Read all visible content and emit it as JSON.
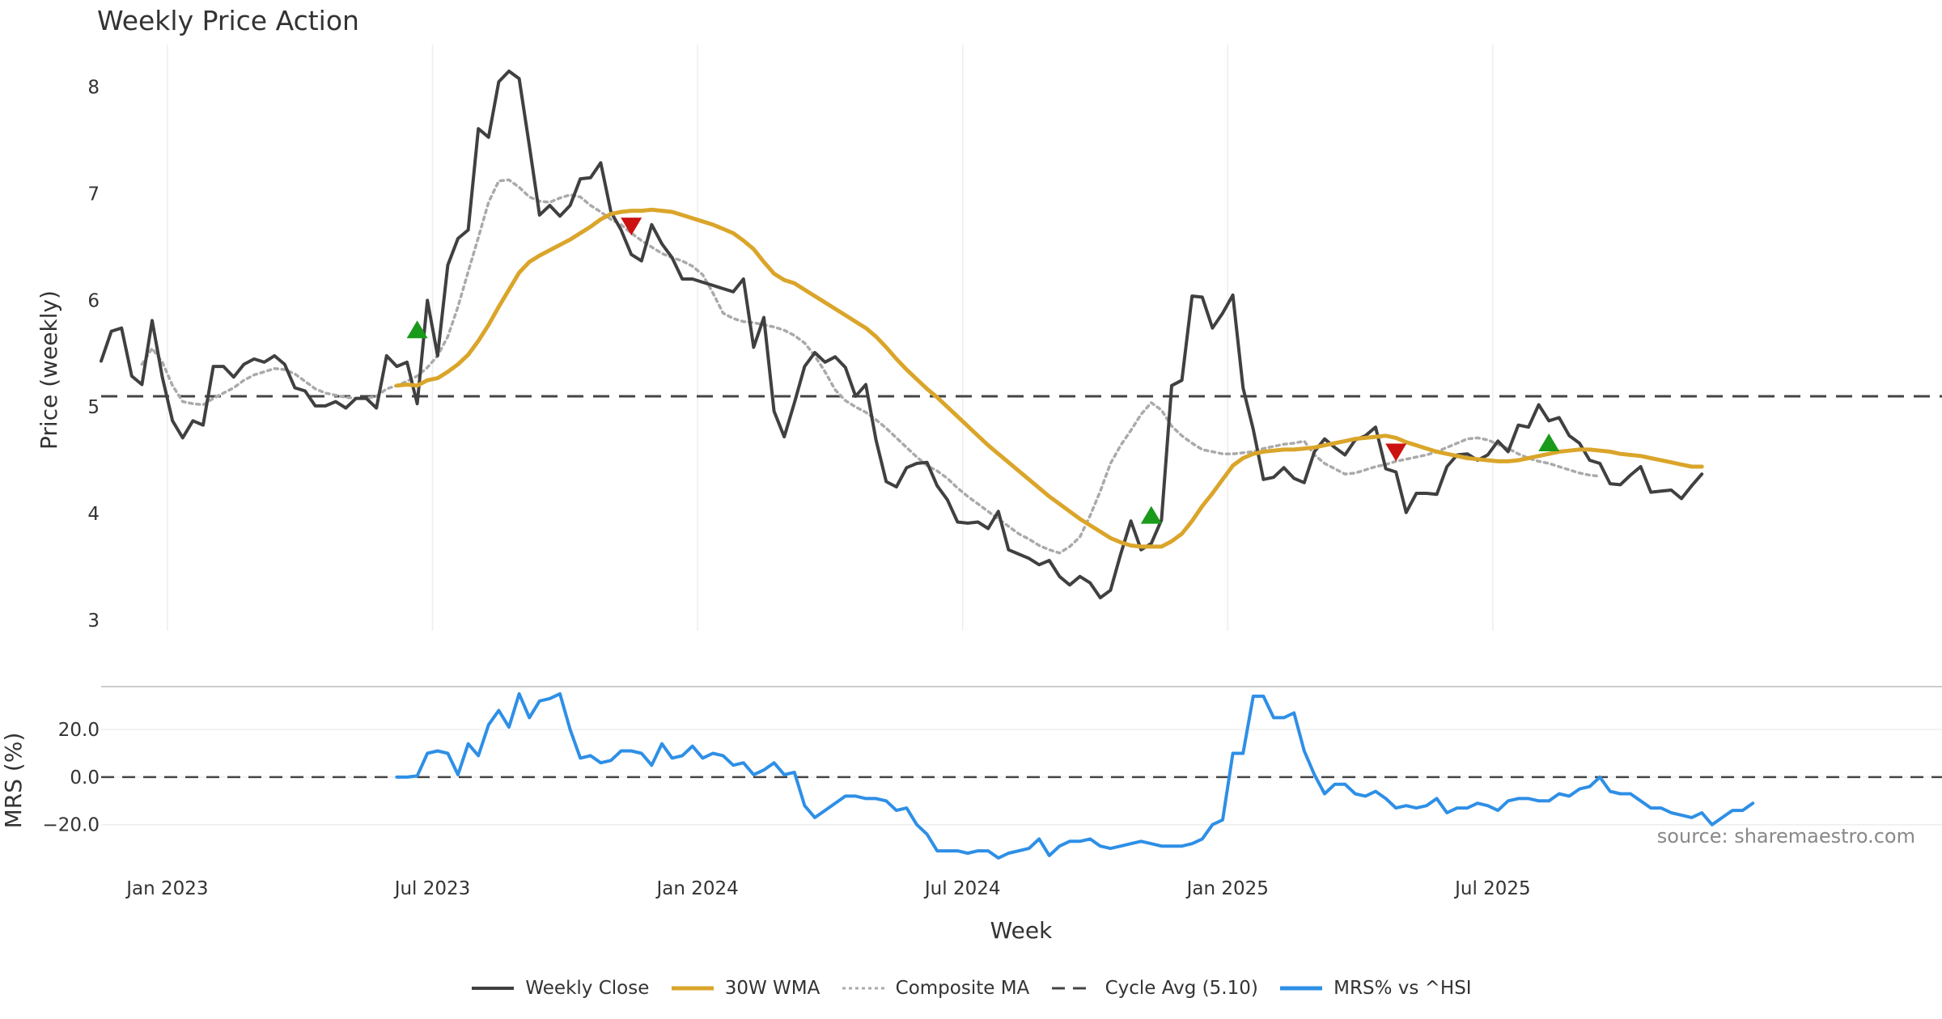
{
  "chart_data": {
    "type": "line",
    "title": "Weekly Price Action",
    "source": "source: sharemaestro.com",
    "x_ticks": [
      "Jan 2023",
      "Jul 2023",
      "Jan 2024",
      "Jul 2024",
      "Jan 2025",
      "Jul 2025"
    ],
    "xlabel": "Week",
    "price_panel": {
      "ylabel": "Price (weekly)",
      "ylim": [
        2.9,
        8.4
      ],
      "yticks": [
        "3",
        "4",
        "5",
        "6",
        "7",
        "8"
      ],
      "cycle_avg": 5.1
    },
    "mrs_panel": {
      "ylabel": "MRS (%)",
      "ylim": [
        -32,
        36
      ],
      "yticks": [
        "20.0",
        "0.0",
        "−20.0"
      ]
    },
    "series": [
      {
        "name": "Weekly Close",
        "color": "#404040",
        "start_week": 0,
        "values": [
          5.43,
          5.71,
          5.74,
          5.29,
          5.21,
          5.81,
          5.28,
          4.87,
          4.71,
          4.87,
          4.83,
          5.38,
          5.38,
          5.28,
          5.4,
          5.45,
          5.42,
          5.48,
          5.4,
          5.18,
          5.15,
          5.01,
          5.01,
          5.05,
          4.99,
          5.08,
          5.08,
          4.99,
          5.48,
          5.38,
          5.42,
          5.03,
          6.0,
          5.48,
          6.33,
          6.58,
          6.66,
          7.61,
          7.53,
          8.05,
          8.15,
          8.08,
          7.45,
          6.8,
          6.89,
          6.79,
          6.89,
          7.14,
          7.15,
          7.29,
          6.83,
          6.66,
          6.43,
          6.37,
          6.71,
          6.53,
          6.4,
          6.2,
          6.2,
          6.17,
          6.14,
          6.11,
          6.08,
          6.2,
          5.56,
          5.84,
          4.96,
          4.72,
          5.04,
          5.38,
          5.51,
          5.42,
          5.47,
          5.37,
          5.1,
          5.21,
          4.69,
          4.3,
          4.25,
          4.43,
          4.47,
          4.48,
          4.26,
          4.13,
          3.92,
          3.91,
          3.92,
          3.86,
          4.02,
          3.66,
          3.62,
          3.58,
          3.52,
          3.56,
          3.41,
          3.33,
          3.41,
          3.35,
          3.21,
          3.28,
          3.62,
          3.93,
          3.66,
          3.72,
          3.94,
          5.2,
          5.25,
          6.04,
          6.03,
          5.74,
          5.88,
          6.05,
          5.18,
          4.79,
          4.32,
          4.34,
          4.43,
          4.33,
          4.29,
          4.58,
          4.7,
          4.62,
          4.55,
          4.69,
          4.73,
          4.81,
          4.42,
          4.39,
          4.01,
          4.19,
          4.19,
          4.18,
          4.44,
          4.55,
          4.56,
          4.5,
          4.55,
          4.68,
          4.58,
          4.83,
          4.81,
          5.02,
          4.87,
          4.9,
          4.73,
          4.66,
          4.5,
          4.47,
          4.28,
          4.27,
          4.36,
          4.44,
          4.2,
          4.21,
          4.22,
          4.14,
          4.26,
          4.37
        ]
      },
      {
        "name": "30W WMA",
        "color": "#DAA52A",
        "start_week": 29,
        "values": [
          5.2,
          5.21,
          5.2,
          5.25,
          5.27,
          5.33,
          5.4,
          5.49,
          5.62,
          5.77,
          5.94,
          6.1,
          6.26,
          6.36,
          6.42,
          6.47,
          6.52,
          6.57,
          6.63,
          6.69,
          6.76,
          6.81,
          6.83,
          6.84,
          6.84,
          6.85,
          6.84,
          6.83,
          6.8,
          6.77,
          6.74,
          6.71,
          6.67,
          6.63,
          6.56,
          6.48,
          6.36,
          6.25,
          6.19,
          6.16,
          6.1,
          6.04,
          5.98,
          5.92,
          5.86,
          5.8,
          5.74,
          5.66,
          5.56,
          5.45,
          5.35,
          5.26,
          5.17,
          5.09,
          5.0,
          4.91,
          4.82,
          4.73,
          4.64,
          4.56,
          4.48,
          4.4,
          4.32,
          4.24,
          4.16,
          4.09,
          4.02,
          3.95,
          3.89,
          3.83,
          3.77,
          3.73,
          3.7,
          3.69,
          3.69,
          3.69,
          3.74,
          3.81,
          3.93,
          4.07,
          4.19,
          4.32,
          4.45,
          4.52,
          4.56,
          4.58,
          4.59,
          4.6,
          4.6,
          4.61,
          4.62,
          4.64,
          4.66,
          4.68,
          4.7,
          4.71,
          4.72,
          4.73,
          4.71,
          4.67,
          4.64,
          4.61,
          4.58,
          4.56,
          4.54,
          4.52,
          4.51,
          4.5,
          4.49,
          4.49,
          4.5,
          4.52,
          4.54,
          4.56,
          4.58,
          4.59,
          4.6,
          4.6,
          4.59,
          4.58,
          4.56,
          4.55,
          4.54,
          4.52,
          4.5,
          4.48,
          4.46,
          4.44,
          4.44
        ]
      },
      {
        "name": "Composite MA",
        "color": "#AAAAAA",
        "start_week": 4,
        "values": [
          5.4,
          5.55,
          5.42,
          5.2,
          5.05,
          5.03,
          5.02,
          5.08,
          5.13,
          5.18,
          5.25,
          5.3,
          5.33,
          5.36,
          5.35,
          5.31,
          5.24,
          5.17,
          5.13,
          5.11,
          5.09,
          5.08,
          5.08,
          5.1,
          5.17,
          5.2,
          5.24,
          5.29,
          5.37,
          5.48,
          5.66,
          5.94,
          6.27,
          6.59,
          6.92,
          7.12,
          7.13,
          7.06,
          6.97,
          6.93,
          6.92,
          6.96,
          6.99,
          6.97,
          6.89,
          6.83,
          6.76,
          6.71,
          6.63,
          6.56,
          6.5,
          6.44,
          6.4,
          6.37,
          6.32,
          6.24,
          6.07,
          5.88,
          5.83,
          5.8,
          5.79,
          5.77,
          5.75,
          5.72,
          5.67,
          5.6,
          5.48,
          5.33,
          5.16,
          5.06,
          5.0,
          4.95,
          4.88,
          4.8,
          4.71,
          4.62,
          4.53,
          4.45,
          4.4,
          4.33,
          4.24,
          4.16,
          4.09,
          4.02,
          3.95,
          3.88,
          3.81,
          3.76,
          3.7,
          3.66,
          3.63,
          3.69,
          3.78,
          3.98,
          4.21,
          4.47,
          4.64,
          4.78,
          4.93,
          5.04,
          4.97,
          4.82,
          4.73,
          4.66,
          4.6,
          4.58,
          4.56,
          4.56,
          4.57,
          4.58,
          4.61,
          4.63,
          4.65,
          4.66,
          4.68,
          4.55,
          4.47,
          4.42,
          4.37,
          4.38,
          4.41,
          4.44,
          4.46,
          4.49,
          4.51,
          4.53,
          4.55,
          4.58,
          4.62,
          4.66,
          4.7,
          4.71,
          4.69,
          4.65,
          4.61,
          4.56,
          4.52,
          4.49,
          4.47,
          4.44,
          4.41,
          4.38,
          4.36,
          4.35
        ]
      },
      {
        "name": "Cycle Avg (5.10)",
        "color": "#444444",
        "values": [
          5.1
        ]
      },
      {
        "name": "MRS% vs ^HSI",
        "color": "#2E8FE6",
        "start_week": 29,
        "values": [
          0.0,
          0.0,
          0.5,
          10,
          11,
          10,
          1,
          14,
          9,
          22,
          28,
          21,
          35,
          25,
          32,
          33,
          35,
          20,
          8,
          9,
          6,
          7,
          11,
          11,
          10,
          5,
          14,
          8,
          9,
          13,
          8,
          10,
          9,
          5,
          6,
          1,
          3,
          6,
          1,
          2,
          -12,
          -17,
          -14,
          -11,
          -8,
          -8,
          -9,
          -9,
          -10,
          -14,
          -13,
          -20,
          -24,
          -31,
          -31,
          -31,
          -32,
          -31,
          -31,
          -34,
          -32,
          -31,
          -30,
          -26,
          -33,
          -29,
          -27,
          -27,
          -26,
          -29,
          -30,
          -29,
          -28,
          -27,
          -28,
          -29,
          -29,
          -29,
          -28,
          -26,
          -20,
          -18,
          10,
          10,
          34,
          34,
          25,
          25,
          27,
          11,
          1,
          -7,
          -3,
          -3,
          -7,
          -8,
          -6,
          -9,
          -13,
          -12,
          -13,
          -12,
          -9,
          -15,
          -13,
          -13,
          -11,
          -12,
          -14,
          -10,
          -9,
          -9,
          -10,
          -10,
          -7,
          -8,
          -5,
          -4,
          0,
          -6,
          -7,
          -7,
          -10,
          -13,
          -13,
          -15,
          -16,
          -17,
          -15,
          -20,
          -17,
          -14,
          -14,
          -11
        ]
      }
    ],
    "signals": [
      {
        "type": "buy",
        "week": 31,
        "value": 5.72
      },
      {
        "type": "sell",
        "week": 52,
        "value": 6.7
      },
      {
        "type": "buy",
        "week": 103,
        "value": 3.98
      },
      {
        "type": "sell",
        "week": 127,
        "value": 4.58
      },
      {
        "type": "buy",
        "week": 142,
        "value": 4.66
      }
    ]
  },
  "legend": [
    {
      "label": "Weekly Close",
      "style": "solid",
      "color": "#404040"
    },
    {
      "label": "30W WMA",
      "style": "solid",
      "color": "#DAA52A"
    },
    {
      "label": "Composite MA",
      "style": "dotted",
      "color": "#AAAAAA"
    },
    {
      "label": "Cycle Avg (5.10)",
      "style": "dashed",
      "color": "#444444"
    },
    {
      "label": "MRS% vs ^HSI",
      "style": "solid",
      "color": "#2E8FE6"
    }
  ]
}
